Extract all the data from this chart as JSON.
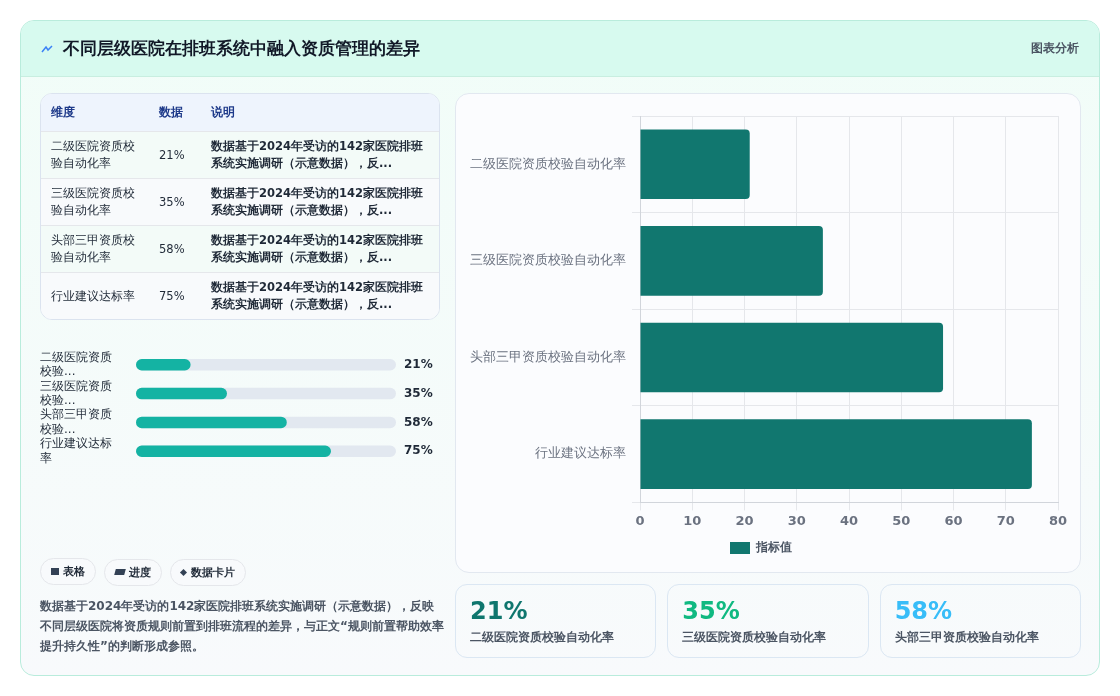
{
  "chart_data": [
    {
      "type": "other",
      "title": "不同层级医院在排班系统中融入资质管理的差异",
      "annotations": [
        "图表分析",
        "表格",
        "进度",
        "数据卡片",
        "数据基于2024年受访的142家医院排班系统实施调研（示意数据），反映不同层级医院将资质规则前置到排班流程的差异，与正文“规则前置帮助效率提升持久性”的判断形成参照。"
      ]
    },
    {
      "type": "bar",
      "orientation": "horizontal",
      "categories": [
        "二级医院资质校验自动化率",
        "三级医院资质校验自动化率",
        "头部三甲资质校验自动化率",
        "行业建议达标率"
      ],
      "series": [
        {
          "name": "指标值",
          "color": "#11776f",
          "values": [
            21,
            35,
            58,
            75
          ]
        }
      ],
      "xlim": [
        0,
        80
      ],
      "xticks": [
        0,
        10,
        20,
        30,
        40,
        50,
        60,
        70,
        80
      ],
      "grid": true,
      "legend": "bottom"
    },
    {
      "type": "other",
      "categories": [
        "二级医院资质校验自动化率",
        "三级医院资质校验自动化率",
        "头部三甲资质校验自动化率",
        "行业建议达标率"
      ],
      "value_labels": [
        "21%",
        "35%",
        "58%",
        "75%"
      ],
      "annotations": [
        "维度",
        "数据",
        "说明",
        "数据基于2024年受访的142家医院排班系统实施调研（示意数据），反...",
        "数据基于2024年受访的142家医院排班系统实施调研（示意数据），反...",
        "数据基于2024年受访的142家医院排班系统实施调研（示意数据），反...",
        "数据基于2024年受访的142家医院排班系统实施调研（示意数据），反..."
      ]
    },
    {
      "type": "bar",
      "orientation": "horizontal",
      "categories": [
        "二级医院资质校验...",
        "三级医院资质校验...",
        "头部三甲资质校验...",
        "行业建议达标率"
      ],
      "values": [
        21,
        35,
        58,
        75
      ],
      "value_labels": [
        "21%",
        "35%",
        "58%",
        "75%"
      ],
      "color": "#14b3a3",
      "xlim": [
        0,
        100
      ],
      "tick_labels": false
    },
    {
      "type": "other",
      "categories": [
        "二级医院资质校验自动化率",
        "三级医院资质校验自动化率",
        "头部三甲资质校验自动化率"
      ],
      "value_labels": [
        "21%",
        "35%",
        "58%"
      ],
      "colors": [
        "#0f766e",
        "#10b981",
        "#38bdf8"
      ]
    }
  ]
}
